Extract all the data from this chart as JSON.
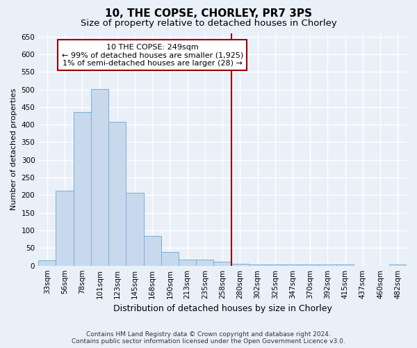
{
  "title": "10, THE COPSE, CHORLEY, PR7 3PS",
  "subtitle": "Size of property relative to detached houses in Chorley",
  "xlabel": "Distribution of detached houses by size in Chorley",
  "ylabel": "Number of detached properties",
  "footer_line1": "Contains HM Land Registry data © Crown copyright and database right 2024.",
  "footer_line2": "Contains public sector information licensed under the Open Government Licence v3.0.",
  "annotation_line1": "10 THE COPSE: 249sqm",
  "annotation_line2": "← 99% of detached houses are smaller (1,925)",
  "annotation_line3": "1% of semi-detached houses are larger (28) →",
  "vline_category": "258sqm",
  "bar_categories": [
    "33sqm",
    "56sqm",
    "78sqm",
    "101sqm",
    "123sqm",
    "145sqm",
    "168sqm",
    "190sqm",
    "213sqm",
    "235sqm",
    "258sqm",
    "280sqm",
    "302sqm",
    "325sqm",
    "347sqm",
    "370sqm",
    "392sqm",
    "415sqm",
    "437sqm",
    "460sqm",
    "482sqm"
  ],
  "bar_heights": [
    15,
    213,
    435,
    502,
    408,
    207,
    84,
    38,
    18,
    17,
    12,
    5,
    4,
    4,
    4,
    4,
    4,
    4,
    0,
    0,
    4
  ],
  "bar_color": "#c8d9ee",
  "bar_edge_color": "#7aafd4",
  "vline_color": "#990000",
  "ylim": [
    0,
    660
  ],
  "yticks": [
    0,
    50,
    100,
    150,
    200,
    250,
    300,
    350,
    400,
    450,
    500,
    550,
    600,
    650
  ],
  "background_color": "#eaf0f8",
  "grid_color": "#ffffff",
  "annotation_box_edgecolor": "#990000",
  "title_fontsize": 11,
  "subtitle_fontsize": 9.5,
  "xlabel_fontsize": 9,
  "ylabel_fontsize": 8,
  "tick_fontsize": 7.5,
  "annotation_fontsize": 8,
  "footer_fontsize": 6.5
}
